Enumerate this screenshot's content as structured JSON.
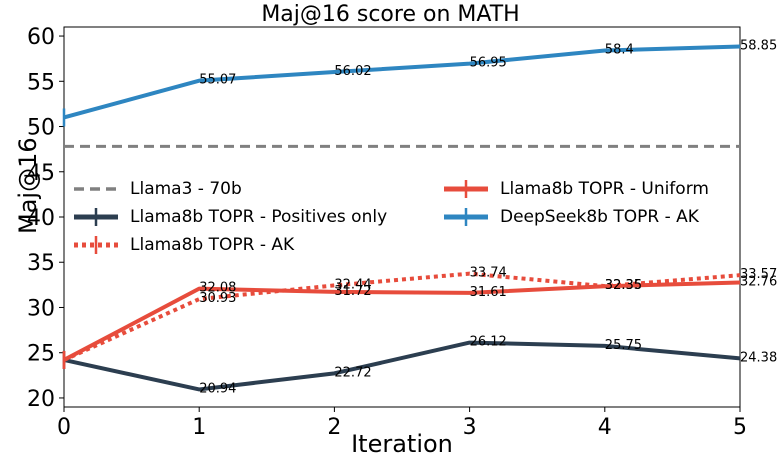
{
  "chart_data": {
    "type": "line",
    "title": "Maj@16 score on MATH",
    "xlabel": "Iteration",
    "ylabel": "Maj@16",
    "x": [
      0,
      1,
      2,
      3,
      4,
      5
    ],
    "xlim": [
      0,
      5
    ],
    "ylim": [
      19,
      61
    ],
    "xticks": [
      "0",
      "1",
      "2",
      "3",
      "4",
      "5"
    ],
    "yticks": [
      "20",
      "25",
      "30",
      "35",
      "40",
      "45",
      "50",
      "55",
      "60"
    ],
    "grid": false,
    "legend_position": "center",
    "reference_line": {
      "name": "Llama3 - 70b",
      "value": 47.8,
      "color": "#808080",
      "style": "dashed"
    },
    "series": [
      {
        "name": "Llama8b TOPR - Positives only",
        "color": "#2c3e50",
        "style": "solid",
        "values": [
          24.2,
          20.94,
          22.72,
          26.12,
          25.75,
          24.38
        ],
        "labels": [
          "",
          "20.94",
          "22.72",
          "26.12",
          "25.75",
          "24.38"
        ]
      },
      {
        "name": "Llama8b TOPR - AK",
        "color": "#e74c3c",
        "style": "dotted",
        "values": [
          24.2,
          30.93,
          32.44,
          33.74,
          32.36,
          33.57
        ],
        "labels": [
          "",
          "30.93",
          "32.44",
          "33.74",
          "32.36",
          "33.57"
        ]
      },
      {
        "name": "Llama8b TOPR - Uniform",
        "color": "#e74c3c",
        "style": "solid",
        "values": [
          24.2,
          32.08,
          31.72,
          31.61,
          32.35,
          32.76
        ],
        "labels": [
          "",
          "32.08",
          "31.72",
          "31.61",
          "32.35",
          "32.76"
        ]
      },
      {
        "name": "DeepSeek8b TOPR - AK",
        "color": "#2e86c1",
        "style": "solid",
        "values": [
          51.0,
          55.07,
          56.02,
          56.95,
          58.4,
          58.85
        ],
        "labels": [
          "",
          "55.07",
          "56.02",
          "56.95",
          "58.4",
          "58.85"
        ]
      }
    ]
  }
}
